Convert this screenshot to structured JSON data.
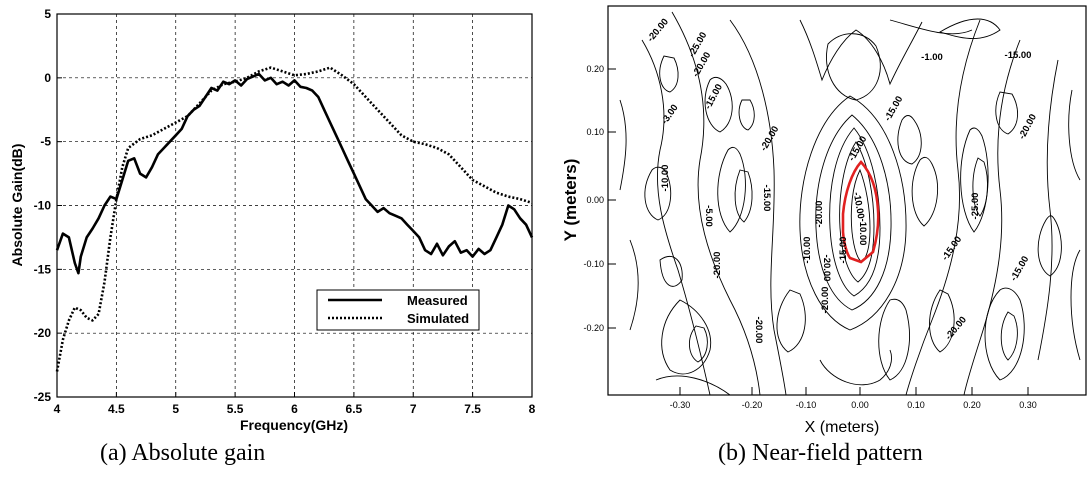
{
  "captions": {
    "a": "(a) Absolute gain",
    "b": "(b) Near-field pattern"
  },
  "chart_data": [
    {
      "type": "line",
      "title": "",
      "xlabel": "Frequency(GHz)",
      "ylabel": "Absolute Gain(dB)",
      "xlim": [
        4,
        8
      ],
      "ylim": [
        -25,
        5
      ],
      "x_ticks": [
        4,
        4.5,
        5,
        5.5,
        6,
        6.5,
        7,
        7.5,
        8
      ],
      "x_tick_labels": [
        "4",
        "4.5",
        "5",
        "5.5",
        "6",
        "6.5",
        "7",
        "7.5",
        "8"
      ],
      "y_ticks": [
        -25,
        -20,
        -15,
        -10,
        -5,
        0,
        5
      ],
      "y_tick_labels": [
        "-25",
        "-20",
        "-15",
        "-10",
        "-5",
        "0",
        "5"
      ],
      "grid": true,
      "legend_position": "bottom-right",
      "series": [
        {
          "name": "Measured",
          "style": "solid",
          "color": "#000000",
          "x": [
            4.0,
            4.05,
            4.1,
            4.15,
            4.18,
            4.2,
            4.25,
            4.3,
            4.35,
            4.4,
            4.45,
            4.5,
            4.55,
            4.6,
            4.65,
            4.7,
            4.75,
            4.8,
            4.85,
            4.9,
            4.95,
            5.0,
            5.05,
            5.1,
            5.15,
            5.2,
            5.25,
            5.3,
            5.35,
            5.4,
            5.45,
            5.5,
            5.55,
            5.6,
            5.65,
            5.7,
            5.75,
            5.8,
            5.85,
            5.9,
            5.95,
            6.0,
            6.05,
            6.1,
            6.15,
            6.2,
            6.25,
            6.3,
            6.35,
            6.4,
            6.45,
            6.5,
            6.55,
            6.6,
            6.65,
            6.7,
            6.75,
            6.8,
            6.85,
            6.9,
            6.95,
            7.0,
            7.05,
            7.1,
            7.15,
            7.2,
            7.25,
            7.3,
            7.35,
            7.4,
            7.45,
            7.5,
            7.55,
            7.6,
            7.65,
            7.7,
            7.75,
            7.8,
            7.85,
            7.9,
            7.95,
            8.0
          ],
          "y": [
            -13.5,
            -12.2,
            -12.5,
            -14.5,
            -15.3,
            -14.0,
            -12.5,
            -11.8,
            -11.0,
            -10.0,
            -9.3,
            -9.5,
            -8.0,
            -6.5,
            -6.3,
            -7.5,
            -7.8,
            -7.0,
            -6.0,
            -5.5,
            -5.0,
            -4.5,
            -4.0,
            -3.0,
            -2.5,
            -2.2,
            -1.5,
            -0.8,
            -1.0,
            -0.3,
            -0.5,
            -0.2,
            -0.6,
            -0.1,
            0.1,
            0.3,
            -0.2,
            0.0,
            -0.5,
            -0.3,
            -0.6,
            -0.2,
            -0.7,
            -0.8,
            -1.0,
            -1.5,
            -2.5,
            -3.5,
            -4.5,
            -5.5,
            -6.5,
            -7.5,
            -8.5,
            -9.5,
            -10.0,
            -10.5,
            -10.2,
            -10.6,
            -10.8,
            -11.0,
            -11.5,
            -12.0,
            -12.5,
            -13.5,
            -13.8,
            -13.0,
            -13.9,
            -13.2,
            -12.8,
            -13.7,
            -13.5,
            -14.0,
            -13.4,
            -13.8,
            -13.5,
            -12.5,
            -11.5,
            -10.0,
            -10.3,
            -11.0,
            -11.5,
            -12.5
          ]
        },
        {
          "name": "Simulated",
          "style": "dotted",
          "color": "#000000",
          "x": [
            4.0,
            4.05,
            4.1,
            4.15,
            4.2,
            4.25,
            4.3,
            4.35,
            4.4,
            4.45,
            4.5,
            4.55,
            4.6,
            4.7,
            4.8,
            4.9,
            5.0,
            5.1,
            5.2,
            5.3,
            5.4,
            5.5,
            5.6,
            5.7,
            5.8,
            5.9,
            6.0,
            6.1,
            6.2,
            6.3,
            6.4,
            6.5,
            6.6,
            6.7,
            6.8,
            6.9,
            7.0,
            7.1,
            7.2,
            7.3,
            7.4,
            7.5,
            7.6,
            7.7,
            7.8,
            7.9,
            8.0
          ],
          "y": [
            -23.0,
            -20.5,
            -19.0,
            -18.0,
            -18.2,
            -18.8,
            -19.0,
            -18.5,
            -16.0,
            -12.5,
            -9.5,
            -7.0,
            -5.5,
            -4.8,
            -4.5,
            -4.0,
            -3.5,
            -3.0,
            -2.0,
            -1.0,
            -0.5,
            -0.3,
            0.0,
            0.5,
            0.8,
            0.5,
            0.2,
            0.3,
            0.5,
            0.8,
            0.2,
            -0.5,
            -1.5,
            -2.5,
            -3.5,
            -4.5,
            -5.0,
            -5.2,
            -5.5,
            -6.0,
            -7.0,
            -8.0,
            -8.5,
            -9.0,
            -9.3,
            -9.5,
            -9.8
          ]
        }
      ]
    },
    {
      "type": "contour",
      "title": "",
      "xlabel": "X (meters)",
      "ylabel": "Y (meters)",
      "x_tick_labels": [
        "-0.30",
        "-0.20",
        "-0.10",
        "0.00",
        "0.10",
        "0.20",
        "0.30"
      ],
      "y_tick_labels": [
        "0.20",
        "0.10",
        "0.00",
        "-0.10",
        "-0.20"
      ],
      "contour_labels": [
        "-20.00",
        "-15.00",
        "-10.00",
        "-5.00",
        "-3.00",
        "-1.00",
        "-25.00",
        "-20.00",
        "-15.00",
        "-15.00",
        "-10.00",
        "-20.00",
        "-20.00",
        "-20.00",
        "-15.00",
        "-20.00",
        "-10.00",
        "-15.00",
        "-20.00",
        "-15.00",
        "-15.00",
        "-20.00",
        "-25.00",
        "-20.00",
        "-10.00",
        "-15.00",
        "-20.00"
      ],
      "highlight_color": "#e02020"
    }
  ]
}
